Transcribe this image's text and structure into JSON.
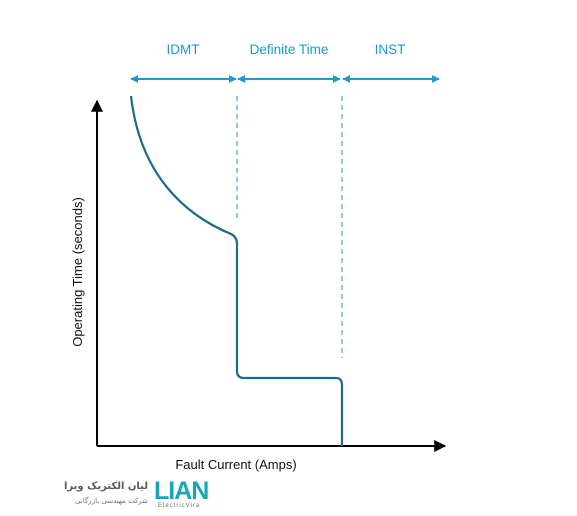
{
  "regions": {
    "idmt": "IDMT",
    "definite_time": "Definite Time",
    "inst": "INST"
  },
  "axes": {
    "x_label": "Fault Current (Amps)",
    "y_label": "Operating Time (seconds)"
  },
  "colors": {
    "accent": "#1a9ad0",
    "curve": "#1b6b8a",
    "axis": "#000000",
    "logo": "#1aa6b7"
  },
  "logo": {
    "name_fa": "لیان الکتریک ویرا",
    "tagline_fa": "شرکت مهندسی بازرگانی",
    "mark": "LIAN",
    "sub": "ElectricVira"
  }
}
